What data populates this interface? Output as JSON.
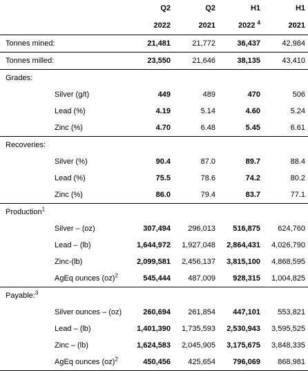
{
  "header": {
    "row1": [
      "Q2",
      "Q2",
      "H1",
      "H1"
    ],
    "row2": [
      "2022",
      "2021",
      "2022",
      "2021"
    ],
    "row2_note": "4"
  },
  "rows": {
    "tonnes_mined": {
      "label": "Tonnes mined:",
      "values": [
        "21,481",
        "21,772",
        "36,437",
        "42,984"
      ]
    },
    "tonnes_milled": {
      "label": "Tonnes milled:",
      "values": [
        "23,550",
        "21,646",
        "38,135",
        "43,410"
      ]
    }
  },
  "grades": {
    "title": "Grades:",
    "items": [
      {
        "label": "Silver (g/t)",
        "values": [
          "449",
          "489",
          "470",
          "506"
        ]
      },
      {
        "label": "Lead (%)",
        "values": [
          "4.19",
          "5.14",
          "4.60",
          "5.24"
        ]
      },
      {
        "label": "Zinc (%)",
        "values": [
          "4.70",
          "6.48",
          "5.45",
          "6.61"
        ]
      }
    ]
  },
  "recoveries": {
    "title": "Recoveries:",
    "items": [
      {
        "label": "Silver (%)",
        "values": [
          "90.4",
          "87.0",
          "89.7",
          "88.4"
        ]
      },
      {
        "label": "Lead (%)",
        "values": [
          "75.5",
          "78.6",
          "74.2",
          "80.2"
        ]
      },
      {
        "label": "Zinc (%)",
        "values": [
          "86.0",
          "79.4",
          "83.7",
          "77.1"
        ]
      }
    ]
  },
  "production": {
    "title": "Production",
    "note": "1",
    "items": [
      {
        "label": "Silver – (oz)",
        "note": "",
        "values": [
          "307,494",
          "296,013",
          "516,875",
          "624,760"
        ]
      },
      {
        "label": "Lead – (lb)",
        "note": "",
        "values": [
          "1,644,972",
          "1,927,048",
          "2,864,431",
          "4,026,790"
        ]
      },
      {
        "label": "Zinc-(lb)",
        "note": "",
        "values": [
          "2,099,581",
          "2,456,137",
          "3,815,100",
          "4,868,595"
        ]
      },
      {
        "label": "AgEq ounces (oz)",
        "note": "2",
        "values": [
          "545,444",
          "487,009",
          "928,315",
          "1,004,825"
        ]
      }
    ]
  },
  "payable": {
    "title": "Payable:",
    "note": "3",
    "items": [
      {
        "label": "Silver ounces – (oz)",
        "note": "",
        "values": [
          "260,694",
          "261,854",
          "447,101",
          "553,821"
        ]
      },
      {
        "label": "Lead – (lb)",
        "note": "",
        "values": [
          "1,401,390",
          "1,735,593",
          "2,530,943",
          "3,595,525"
        ]
      },
      {
        "label": "Zinc – (lb)",
        "note": "",
        "values": [
          "1,624,583",
          "2,045,905",
          "3,175,675",
          "3,848,335"
        ]
      },
      {
        "label": "AgEq ounces (oz)",
        "note": "2",
        "values": [
          "450,456",
          "425,654",
          "796,069",
          "868,981"
        ]
      }
    ]
  }
}
